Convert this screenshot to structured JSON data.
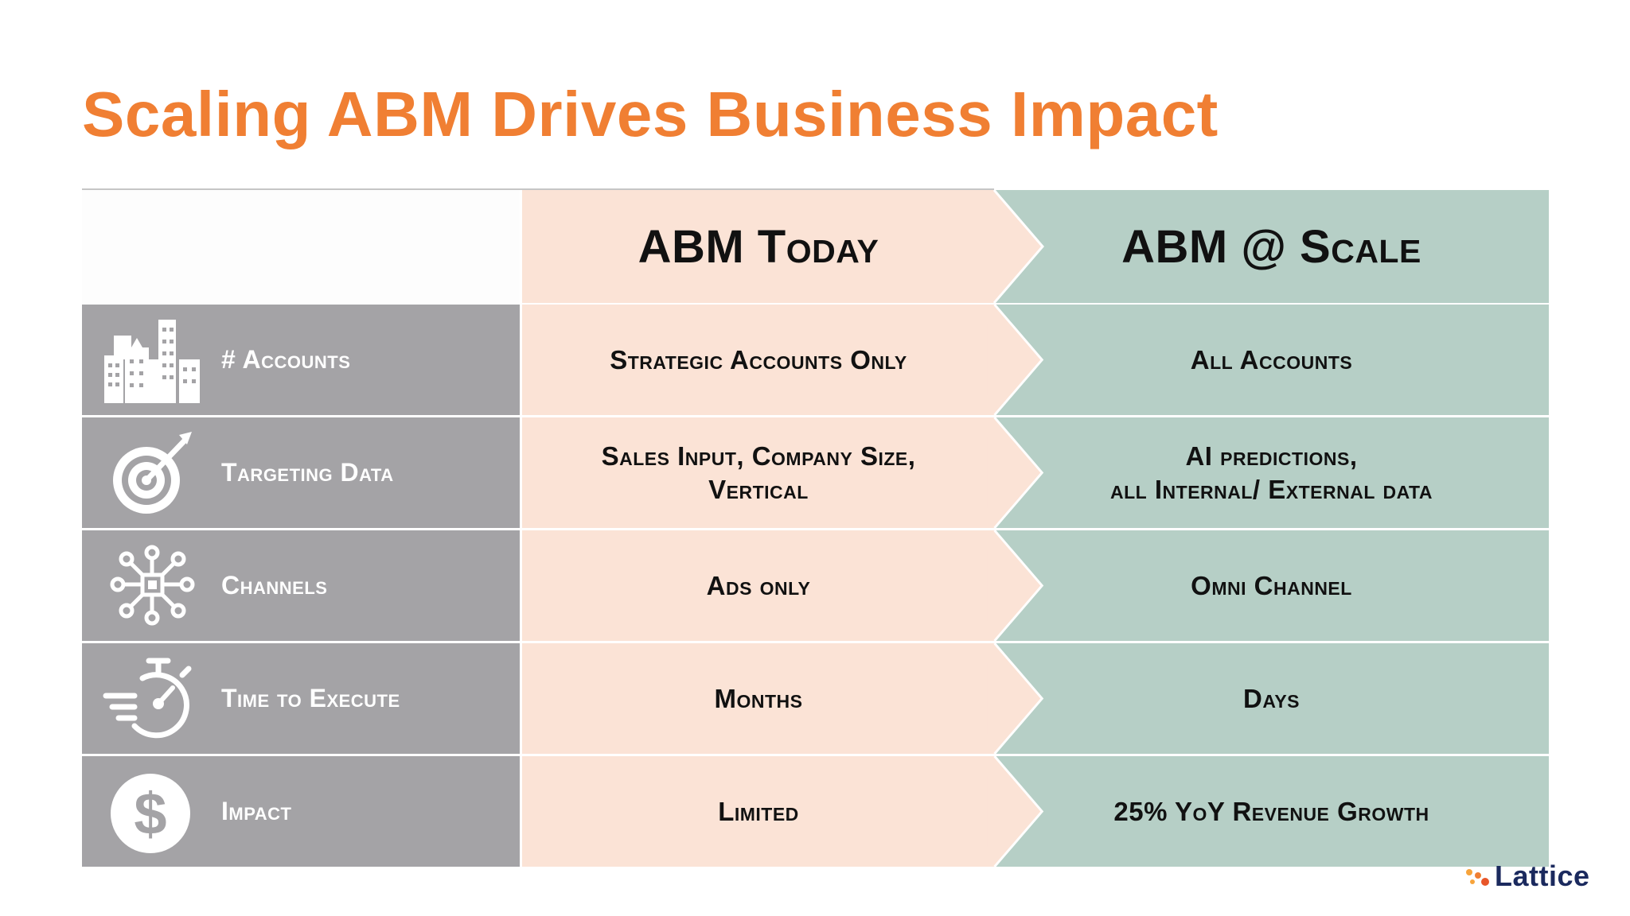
{
  "slide": {
    "title": "Scaling ABM Drives Business Impact",
    "accent_color": "#f07f33",
    "columns": {
      "today": "ABM Today",
      "scale": "ABM @ Scale"
    },
    "rows": [
      {
        "icon": "buildings-icon",
        "label": "# Accounts",
        "today": "Strategic Accounts Only",
        "scale": "All Accounts"
      },
      {
        "icon": "target-icon",
        "label": "Targeting Data",
        "today": "Sales Input, Company Size,\nVertical",
        "scale": "AI predictions,\nall Internal/ External data"
      },
      {
        "icon": "network-icon",
        "label": "Channels",
        "today": "Ads only",
        "scale": "Omni Channel"
      },
      {
        "icon": "stopwatch-icon",
        "label": "Time to Execute",
        "today": "Months",
        "scale": "Days"
      },
      {
        "icon": "dollar-icon",
        "label": "Impact",
        "today": "Limited",
        "scale": "25% YoY Revenue Growth"
      }
    ],
    "colors": {
      "category_bg": "#a4a3a6",
      "today_bg": "#fbe3d6",
      "scale_bg": "#b6cfc6"
    },
    "logo": "Lattice"
  }
}
